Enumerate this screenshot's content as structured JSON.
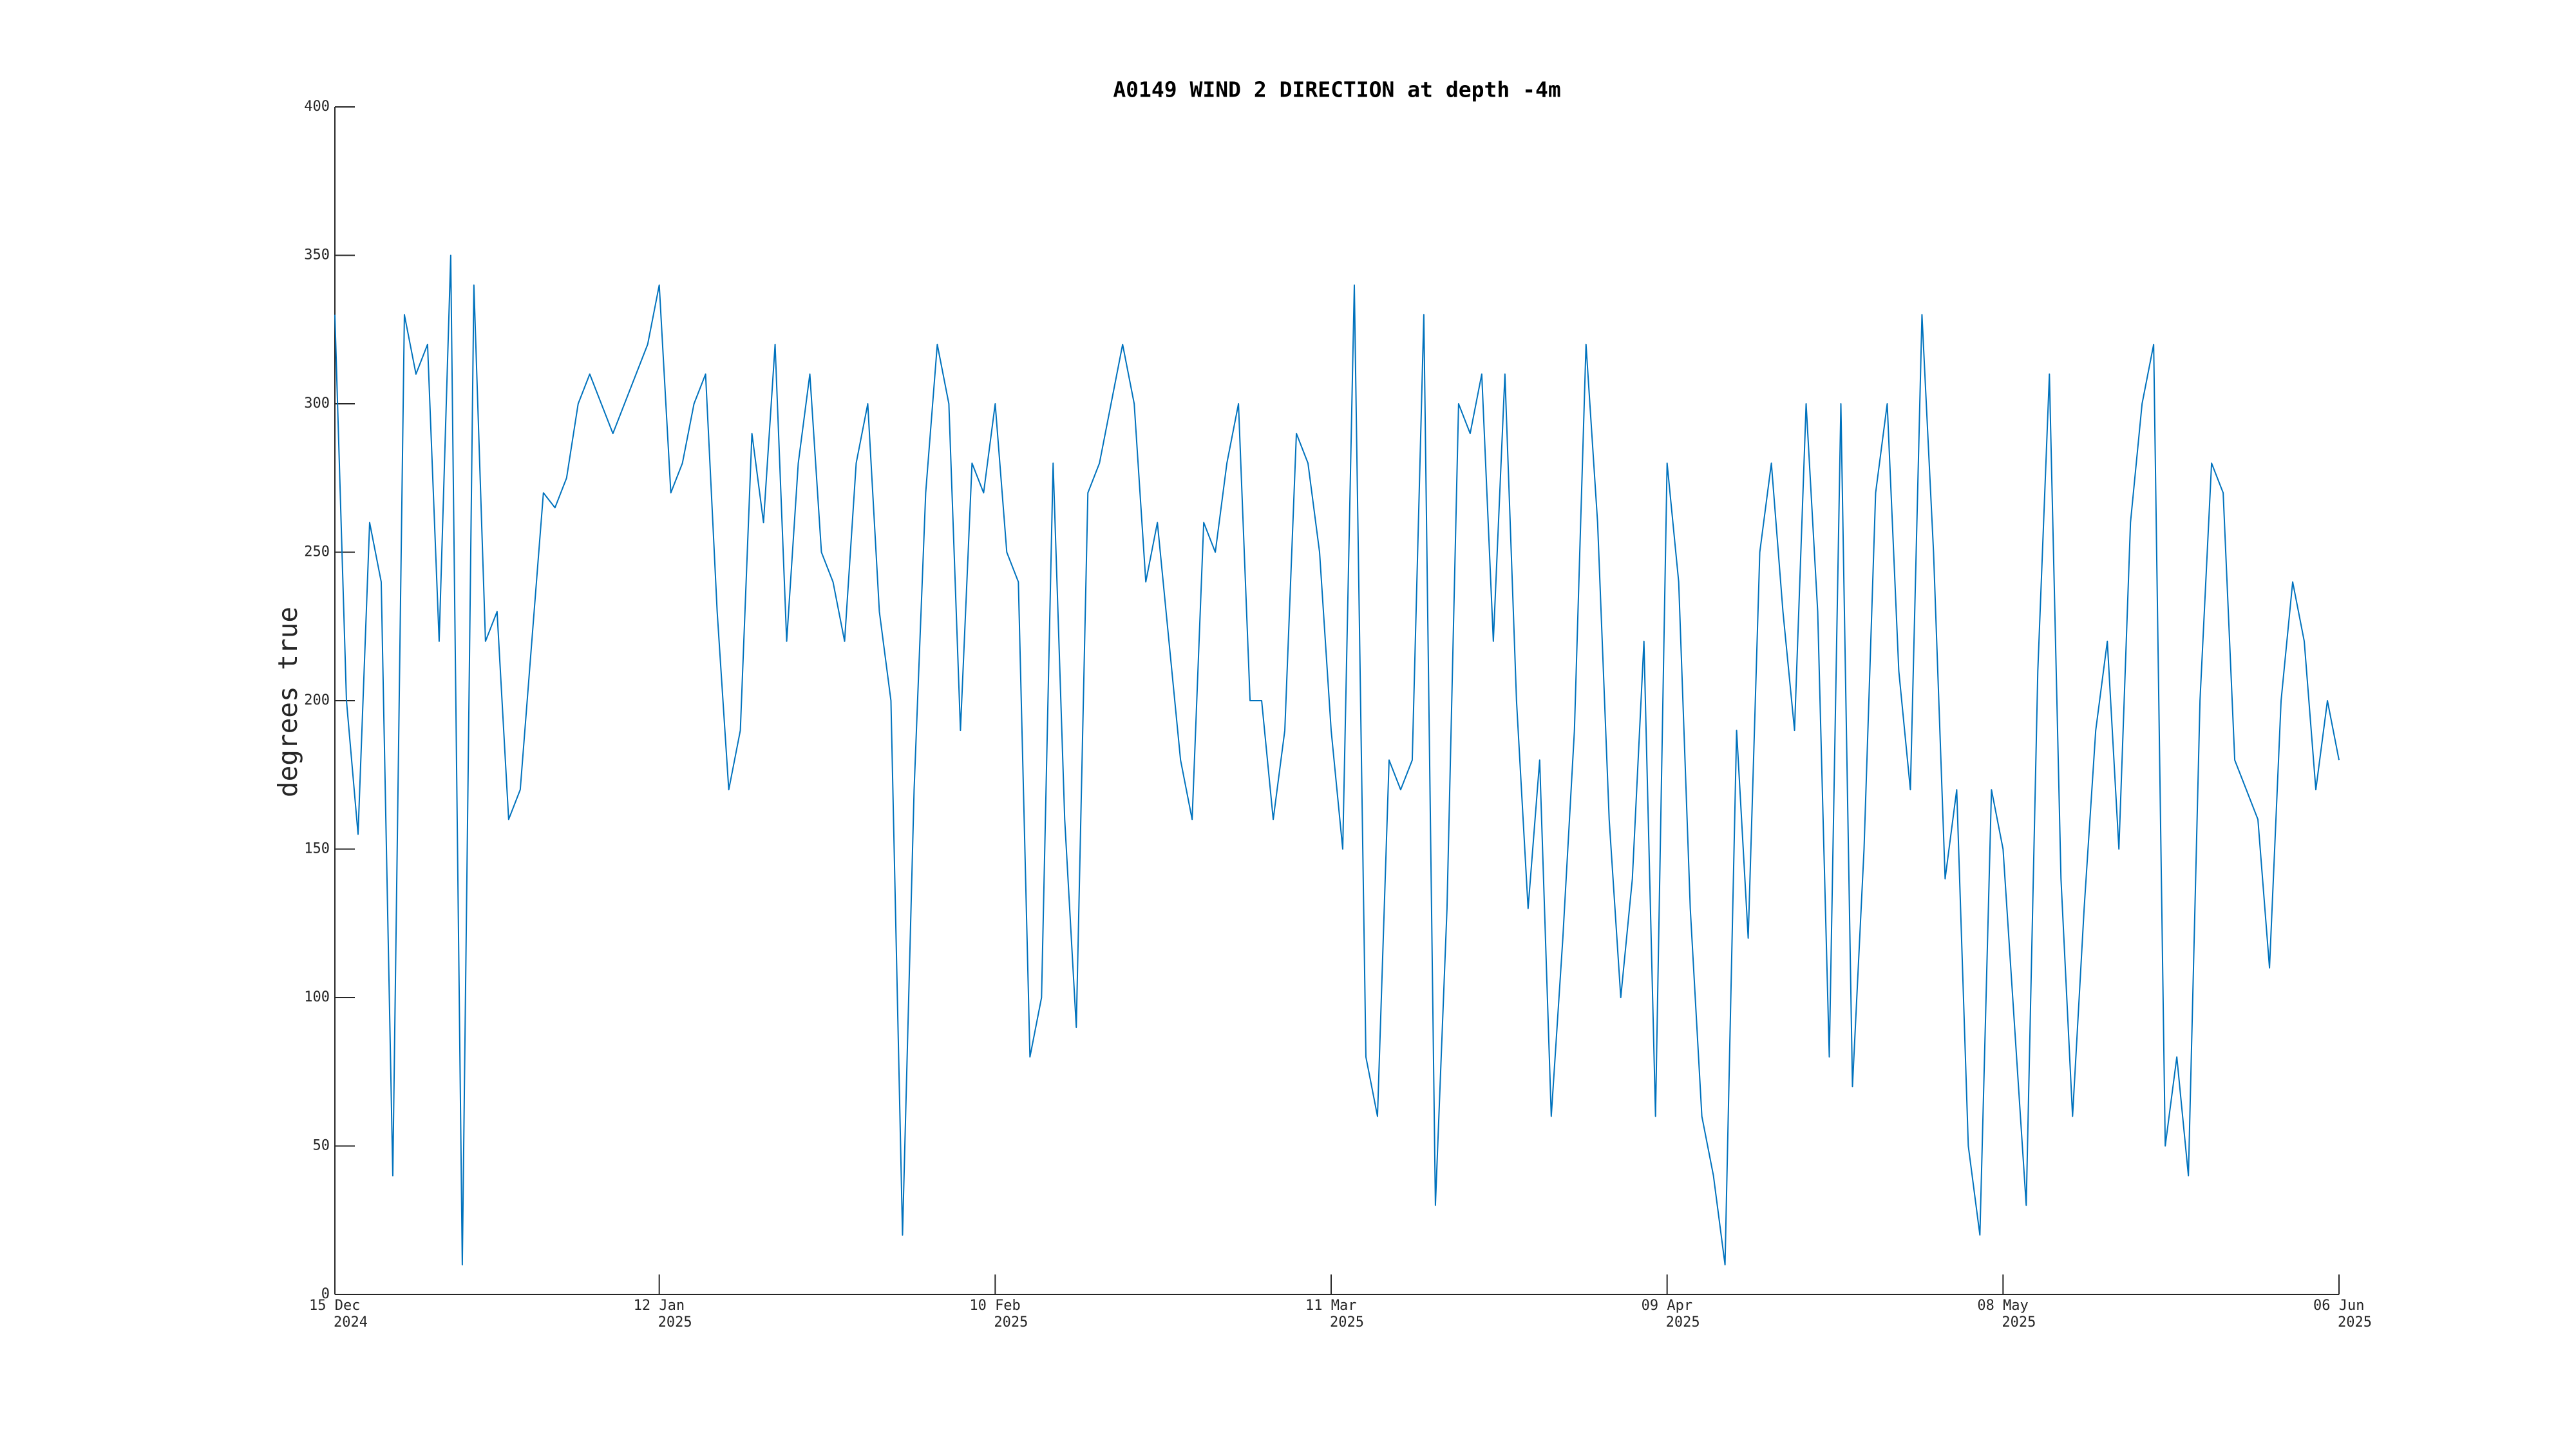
{
  "chart_data": {
    "type": "line",
    "title": "A0149 WIND 2 DIRECTION at depth -4m",
    "ylabel": "degrees true",
    "color": "#0072BD",
    "x": [
      "2024-12-15",
      "2024-12-16",
      "2024-12-17",
      "2024-12-18",
      "2024-12-19",
      "2024-12-20",
      "2024-12-21",
      "2024-12-22",
      "2024-12-23",
      "2024-12-24",
      "2024-12-25",
      "2024-12-26",
      "2024-12-27",
      "2024-12-28",
      "2024-12-29",
      "2024-12-30",
      "2024-12-31",
      "2025-01-01",
      "2025-01-02",
      "2025-01-03",
      "2025-01-04",
      "2025-01-05",
      "2025-01-06",
      "2025-01-07",
      "2025-01-08",
      "2025-01-09",
      "2025-01-10",
      "2025-01-11",
      "2025-01-12",
      "2025-01-13",
      "2025-01-14",
      "2025-01-15",
      "2025-01-16",
      "2025-01-17",
      "2025-01-18",
      "2025-01-19",
      "2025-01-20",
      "2025-01-21",
      "2025-01-22",
      "2025-01-23",
      "2025-01-24",
      "2025-01-25",
      "2025-01-26",
      "2025-01-27",
      "2025-01-28",
      "2025-01-29",
      "2025-01-30",
      "2025-01-31",
      "2025-02-01",
      "2025-02-02",
      "2025-02-03",
      "2025-02-04",
      "2025-02-05",
      "2025-02-06",
      "2025-02-07",
      "2025-02-08",
      "2025-02-09",
      "2025-02-10",
      "2025-02-11",
      "2025-02-12",
      "2025-02-13",
      "2025-02-14",
      "2025-02-15",
      "2025-02-16",
      "2025-02-17",
      "2025-02-18",
      "2025-02-19",
      "2025-02-20",
      "2025-02-21",
      "2025-02-22",
      "2025-02-23",
      "2025-02-24",
      "2025-02-25",
      "2025-02-26",
      "2025-02-27",
      "2025-02-28",
      "2025-03-01",
      "2025-03-02",
      "2025-03-03",
      "2025-03-04",
      "2025-03-05",
      "2025-03-06",
      "2025-03-07",
      "2025-03-08",
      "2025-03-09",
      "2025-03-10",
      "2025-03-11",
      "2025-03-12",
      "2025-03-13",
      "2025-03-14",
      "2025-03-15",
      "2025-03-16",
      "2025-03-17",
      "2025-03-18",
      "2025-03-19",
      "2025-03-20",
      "2025-03-21",
      "2025-03-22",
      "2025-03-23",
      "2025-03-24",
      "2025-03-25",
      "2025-03-26",
      "2025-03-27",
      "2025-03-28",
      "2025-03-29",
      "2025-03-30",
      "2025-03-31",
      "2025-04-01",
      "2025-04-02",
      "2025-04-03",
      "2025-04-04",
      "2025-04-05",
      "2025-04-06",
      "2025-04-07",
      "2025-04-08",
      "2025-04-09",
      "2025-04-10",
      "2025-04-11",
      "2025-04-12",
      "2025-04-13",
      "2025-04-14",
      "2025-04-15",
      "2025-04-16",
      "2025-04-17",
      "2025-04-18",
      "2025-04-19",
      "2025-04-20",
      "2025-04-21",
      "2025-04-22",
      "2025-04-23",
      "2025-04-24",
      "2025-04-25",
      "2025-04-26",
      "2025-04-27",
      "2025-04-28",
      "2025-04-29",
      "2025-04-30",
      "2025-05-01",
      "2025-05-02",
      "2025-05-03",
      "2025-05-04",
      "2025-05-05",
      "2025-05-06",
      "2025-05-07",
      "2025-05-08",
      "2025-05-09",
      "2025-05-10",
      "2025-05-11",
      "2025-05-12",
      "2025-05-13",
      "2025-05-14",
      "2025-05-15",
      "2025-05-16",
      "2025-05-17",
      "2025-05-18",
      "2025-05-19",
      "2025-05-20",
      "2025-05-21",
      "2025-05-22",
      "2025-05-23",
      "2025-05-24",
      "2025-05-25",
      "2025-05-26",
      "2025-05-27",
      "2025-05-28",
      "2025-05-29",
      "2025-05-30",
      "2025-05-31",
      "2025-06-01",
      "2025-06-02",
      "2025-06-03",
      "2025-06-04",
      "2025-06-05",
      "2025-06-06"
    ],
    "values": [
      330,
      200,
      155,
      260,
      240,
      40,
      330,
      310,
      320,
      220,
      350,
      10,
      340,
      220,
      230,
      160,
      170,
      220,
      270,
      265,
      275,
      300,
      310,
      300,
      290,
      300,
      310,
      320,
      340,
      270,
      280,
      300,
      310,
      230,
      170,
      190,
      290,
      260,
      320,
      220,
      280,
      310,
      250,
      240,
      220,
      280,
      300,
      230,
      200,
      20,
      170,
      270,
      320,
      300,
      190,
      280,
      270,
      300,
      250,
      240,
      80,
      100,
      280,
      160,
      90,
      270,
      280,
      300,
      320,
      300,
      240,
      260,
      220,
      180,
      160,
      260,
      250,
      280,
      300,
      200,
      200,
      160,
      190,
      290,
      280,
      250,
      190,
      150,
      340,
      80,
      60,
      180,
      170,
      180,
      330,
      30,
      130,
      300,
      290,
      310,
      220,
      310,
      200,
      130,
      180,
      60,
      120,
      190,
      320,
      260,
      160,
      100,
      140,
      220,
      60,
      280,
      240,
      130,
      60,
      40,
      10,
      190,
      120,
      250,
      280,
      230,
      190,
      300,
      230,
      80,
      300,
      70,
      150,
      270,
      300,
      210,
      170,
      330,
      250,
      140,
      170,
      50,
      20,
      170,
      150,
      90,
      30,
      210,
      310,
      140,
      60,
      130,
      190,
      220,
      150,
      260,
      300,
      320,
      50,
      80,
      40,
      200,
      280,
      270,
      180,
      170,
      160,
      110,
      200,
      240,
      220,
      170,
      200,
      180
    ],
    "xlim": [
      "2024-12-15",
      "2025-06-06"
    ],
    "xticks": [
      {
        "value": "2024-12-15",
        "label": "15 Dec",
        "year": "2024"
      },
      {
        "value": "2025-01-12",
        "label": "12 Jan",
        "year": "2025"
      },
      {
        "value": "2025-02-10",
        "label": "10 Feb",
        "year": "2025"
      },
      {
        "value": "2025-03-11",
        "label": "11 Mar",
        "year": "2025"
      },
      {
        "value": "2025-04-09",
        "label": "09 Apr",
        "year": "2025"
      },
      {
        "value": "2025-05-08",
        "label": "08 May",
        "year": "2025"
      },
      {
        "value": "2025-06-06",
        "label": "06 Jun",
        "year": "2025"
      }
    ],
    "ylim": [
      0,
      400
    ],
    "yticks": [
      0,
      50,
      100,
      150,
      200,
      250,
      300,
      350,
      400
    ]
  }
}
